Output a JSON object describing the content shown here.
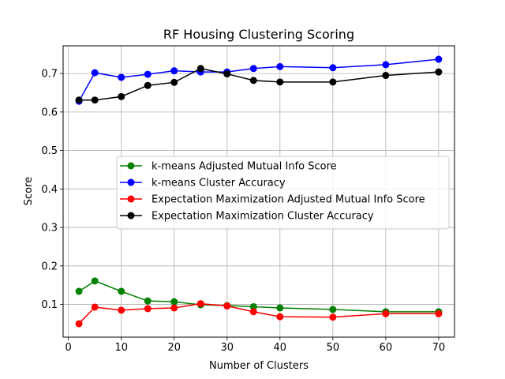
{
  "chart_data": {
    "type": "line",
    "title": "RF Housing Clustering Scoring",
    "xlabel": "Number of Clusters",
    "ylabel": "Score",
    "xlim": [
      -1,
      73
    ],
    "ylim": [
      0.015,
      0.772
    ],
    "xticks": [
      0,
      10,
      20,
      30,
      40,
      50,
      60,
      70
    ],
    "yticks": [
      0.1,
      0.2,
      0.3,
      0.4,
      0.5,
      0.6,
      0.7
    ],
    "grid": true,
    "legend_position": "center-right",
    "x": [
      2,
      5,
      10,
      15,
      20,
      25,
      30,
      35,
      40,
      50,
      60,
      70
    ],
    "series": [
      {
        "name": "k-means Adjusted Mutual Info Score",
        "color": "#008000",
        "values": [
          0.134,
          0.161,
          0.134,
          0.109,
          0.107,
          0.099,
          0.097,
          0.094,
          0.091,
          0.087,
          0.081,
          0.081
        ]
      },
      {
        "name": "k-means Cluster Accuracy",
        "color": "#0000ff",
        "values": [
          0.628,
          0.702,
          0.69,
          0.698,
          0.707,
          0.704,
          0.704,
          0.713,
          0.718,
          0.715,
          0.723,
          0.737
        ]
      },
      {
        "name": "Expectation Maximization Adjusted Mutual Info Score",
        "color": "#ff0000",
        "values": [
          0.05,
          0.093,
          0.085,
          0.089,
          0.091,
          0.102,
          0.096,
          0.081,
          0.068,
          0.067,
          0.076,
          0.076
        ]
      },
      {
        "name": "Expectation Maximization Cluster Accuracy",
        "color": "#000000",
        "values": [
          0.631,
          0.631,
          0.64,
          0.669,
          0.677,
          0.713,
          0.699,
          0.682,
          0.678,
          0.678,
          0.695,
          0.704
        ]
      }
    ]
  }
}
